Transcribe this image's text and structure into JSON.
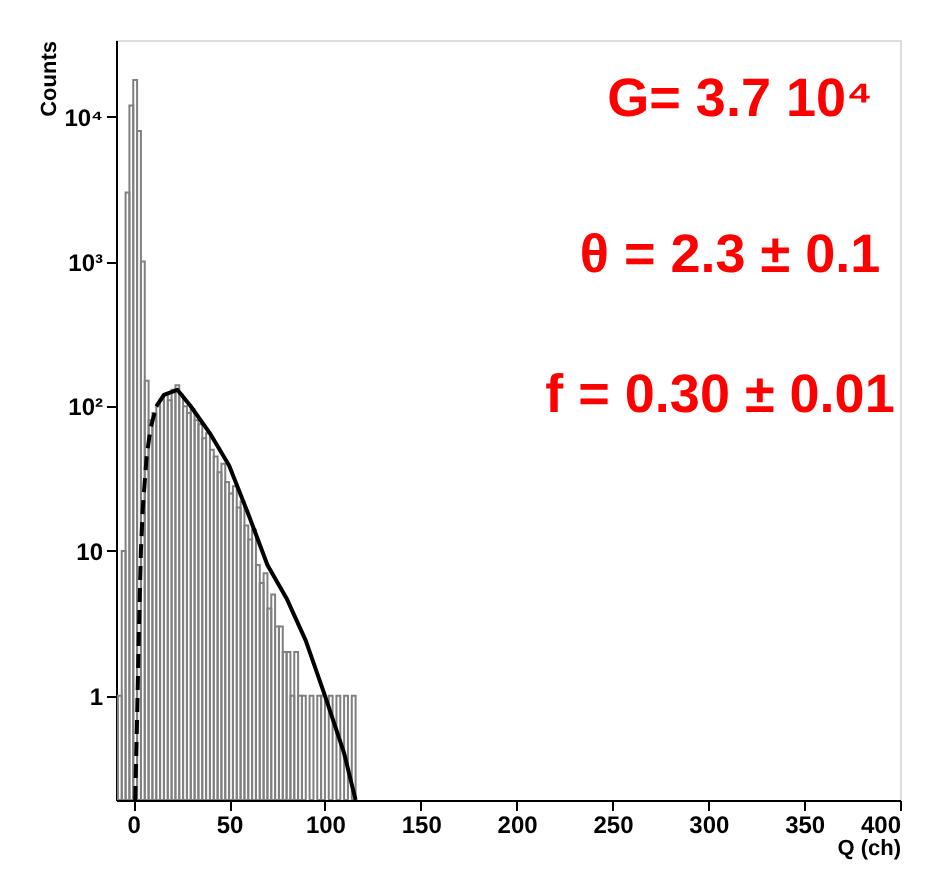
{
  "chart_data": {
    "type": "histogram",
    "xlabel": "Q (ch)",
    "ylabel": "Counts",
    "xlim": [
      -9,
      400
    ],
    "xticks": [
      0,
      50,
      100,
      150,
      200,
      250,
      300,
      350,
      400
    ],
    "ylim": [
      0.19,
      34000
    ],
    "log": "y",
    "grid": false,
    "yticks": [
      {
        "value": 1,
        "label": "1"
      },
      {
        "value": 10,
        "label": "10"
      },
      {
        "value": 100,
        "label": "10²"
      },
      {
        "value": 1000,
        "label": "10³"
      },
      {
        "value": 10000,
        "label": "10⁴"
      }
    ],
    "series": [
      {
        "color": "#808080",
        "bins": [
          -8,
          -6,
          -4,
          -2,
          0,
          2,
          4,
          6,
          8,
          10,
          12,
          14,
          16,
          18,
          20,
          22,
          24,
          26,
          28,
          30,
          32,
          34,
          36,
          38,
          40,
          42,
          44,
          46,
          48,
          50,
          52,
          54,
          56,
          58,
          60,
          62,
          64,
          66,
          68,
          70,
          72,
          74,
          76,
          78,
          80,
          82,
          84,
          86,
          88,
          90,
          92,
          94,
          96,
          98,
          100,
          102,
          104,
          106,
          108,
          110,
          112,
          114,
          116,
          118
        ],
        "values": [
          1,
          10,
          3000,
          12000,
          18000,
          8000,
          1000,
          150,
          80,
          90,
          100,
          110,
          120,
          110,
          130,
          140,
          120,
          100,
          90,
          95,
          80,
          75,
          60,
          65,
          50,
          45,
          35,
          40,
          30,
          25,
          28,
          20,
          22,
          15,
          12,
          14,
          8,
          6,
          7,
          4,
          5,
          3,
          3,
          2,
          2,
          1,
          2,
          1,
          1,
          null,
          1,
          null,
          1,
          1,
          null,
          1,
          null,
          1,
          null,
          1,
          null,
          1,
          null
        ]
      },
      {
        "type": "line",
        "color": "#000000",
        "line_style": "dashed",
        "x": [
          1,
          2,
          3,
          4,
          5,
          7,
          9,
          12
        ],
        "values": [
          0.19,
          0.7,
          3,
          10,
          20,
          45,
          70,
          100
        ]
      },
      {
        "type": "line",
        "color": "#000000",
        "line_style": "solid",
        "x": [
          12,
          16,
          23,
          30,
          40,
          50,
          60,
          70,
          80,
          90,
          100,
          110,
          116
        ],
        "values": [
          100,
          120,
          130,
          100,
          65,
          39,
          18,
          8,
          4.7,
          2.4,
          1,
          0.4,
          0.19
        ]
      }
    ],
    "annotations": [
      "G= 3.7 10⁴",
      "θ = 2.3 ± 0.1",
      "f = 0.30 ± 0.01"
    ]
  }
}
